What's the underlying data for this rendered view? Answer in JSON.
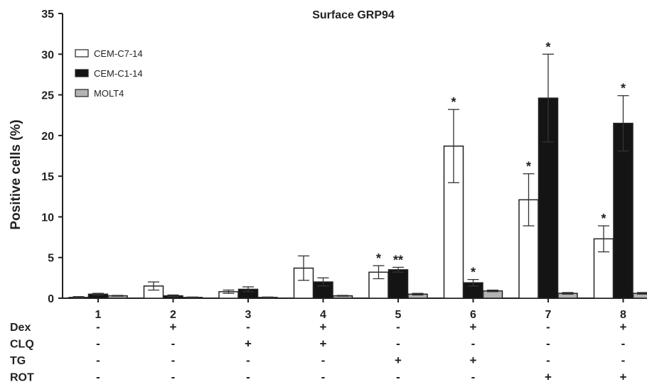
{
  "chart_data": {
    "type": "bar",
    "title": "Surface GRP94",
    "ylabel": "Positive cells (%)",
    "xlabel": "",
    "ylim": [
      0,
      35
    ],
    "yticks": [
      0,
      5,
      10,
      15,
      20,
      25,
      30,
      35
    ],
    "categories": [
      "1",
      "2",
      "3",
      "4",
      "5",
      "6",
      "7",
      "8"
    ],
    "legend_position": "top-left",
    "grid": false,
    "series": [
      {
        "name": "CEM-C7-14",
        "color": "#ffffff",
        "values": [
          0.1,
          1.5,
          0.8,
          3.7,
          3.2,
          18.7,
          12.1,
          7.3
        ],
        "errors": [
          0.1,
          0.5,
          0.2,
          1.5,
          0.8,
          4.5,
          3.2,
          1.6
        ],
        "stars": [
          "",
          "",
          "",
          "",
          "*",
          "*",
          "*",
          "*"
        ]
      },
      {
        "name": "CEM-C1-14",
        "color": "#141414",
        "values": [
          0.5,
          0.3,
          1.1,
          2.0,
          3.5,
          1.9,
          24.6,
          21.5
        ],
        "errors": [
          0.1,
          0.1,
          0.3,
          0.5,
          0.3,
          0.4,
          5.4,
          3.4
        ],
        "stars": [
          "",
          "",
          "",
          "",
          "**",
          "*",
          "*",
          "*"
        ]
      },
      {
        "name": "MOLT4",
        "color": "#b3b3b3",
        "values": [
          0.3,
          0.1,
          0.1,
          0.3,
          0.5,
          0.9,
          0.6,
          0.6
        ],
        "errors": [
          0.05,
          0.05,
          0.05,
          0.05,
          0.1,
          0.1,
          0.1,
          0.1
        ],
        "stars": [
          "",
          "",
          "",
          "",
          "",
          "",
          "",
          ""
        ]
      }
    ],
    "treatments": [
      {
        "name": "Dex",
        "signs": [
          "-",
          "+",
          "-",
          "+",
          "-",
          "+",
          "-",
          "+"
        ]
      },
      {
        "name": "CLQ",
        "signs": [
          "-",
          "-",
          "+",
          "+",
          "-",
          "-",
          "-",
          "-"
        ]
      },
      {
        "name": "TG",
        "signs": [
          "-",
          "-",
          "-",
          "-",
          "+",
          "+",
          "-",
          "-"
        ]
      },
      {
        "name": "ROT",
        "signs": [
          "-",
          "-",
          "-",
          "-",
          "-",
          "-",
          "+",
          "+"
        ]
      }
    ]
  }
}
